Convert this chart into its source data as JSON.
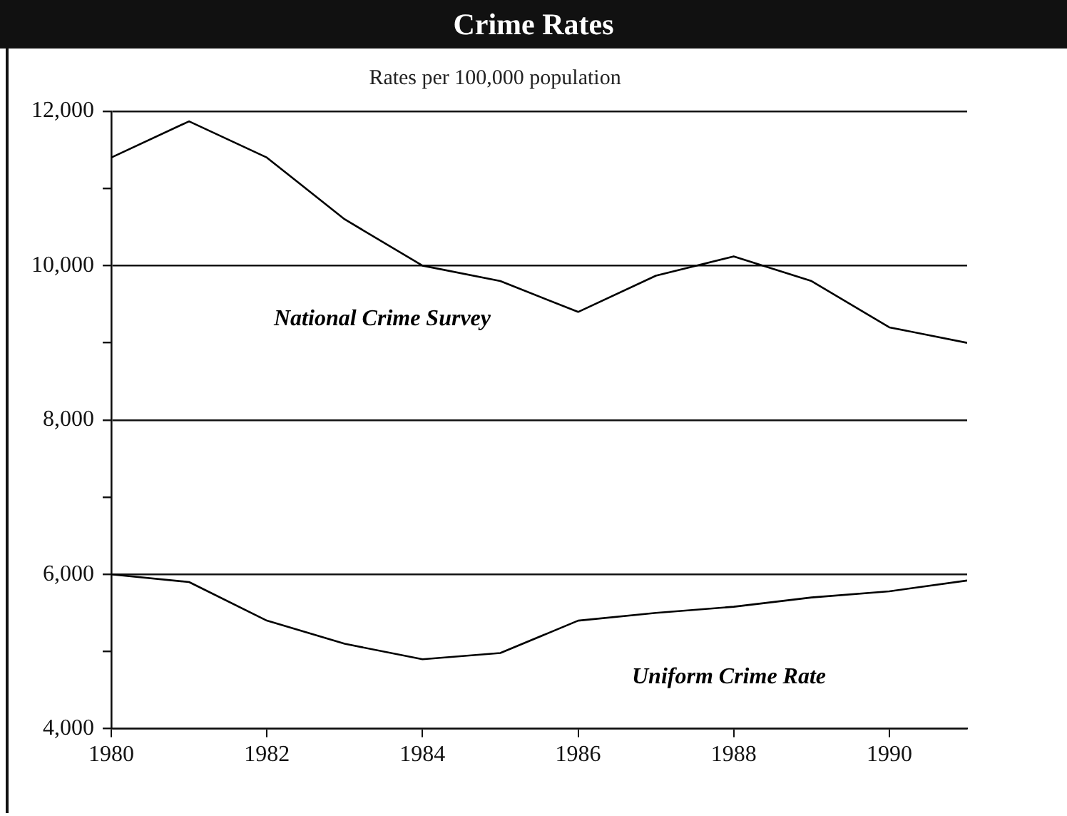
{
  "chart_data": {
    "type": "line",
    "title": "Crime Rates",
    "subtitle": "Rates per 100,000 population",
    "x": [
      1980,
      1981,
      1982,
      1983,
      1984,
      1985,
      1986,
      1987,
      1988,
      1989,
      1990,
      1991
    ],
    "series": [
      {
        "name": "National Crime Survey",
        "color": "#000000",
        "values": [
          11400,
          11870,
          11400,
          10600,
          10000,
          9800,
          9400,
          9870,
          10120,
          9800,
          9200,
          9000
        ]
      },
      {
        "name": "Uniform Crime Rate",
        "color": "#000000",
        "values": [
          6000,
          5900,
          5400,
          5100,
          4900,
          4980,
          5400,
          5500,
          5580,
          5700,
          5780,
          5920
        ]
      }
    ],
    "xlim": [
      1980,
      1991
    ],
    "xticks": [
      1980,
      1982,
      1984,
      1986,
      1988,
      1990
    ],
    "ylim": [
      4000,
      12000
    ],
    "yticks": [
      {
        "value": 4000,
        "label": "4,000"
      },
      {
        "value": 5000,
        "label": null
      },
      {
        "value": 6000,
        "label": "6,000"
      },
      {
        "value": 7000,
        "label": null
      },
      {
        "value": 8000,
        "label": "8,000"
      },
      {
        "value": 9000,
        "label": null
      },
      {
        "value": 10000,
        "label": "10,000"
      },
      {
        "value": 11000,
        "label": null
      },
      {
        "value": 12000,
        "label": "12,000"
      }
    ],
    "grid": "y",
    "legend": false,
    "marker": "none",
    "line_style": "solid"
  }
}
